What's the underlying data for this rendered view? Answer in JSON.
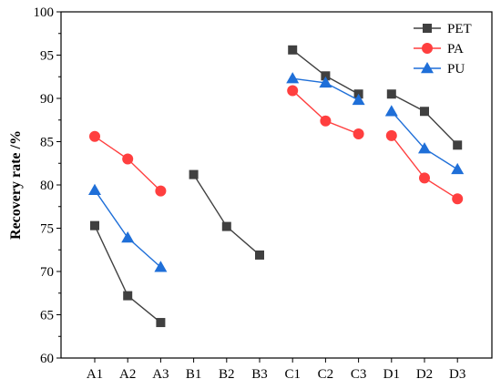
{
  "chart_data": {
    "type": "line",
    "title": "",
    "xlabel": "",
    "ylabel": "Recovery rate /%",
    "ylim": [
      60,
      100
    ],
    "yticks": [
      60,
      65,
      70,
      75,
      80,
      85,
      90,
      95,
      100
    ],
    "categories": [
      "A1",
      "A2",
      "A3",
      "B1",
      "B2",
      "B3",
      "C1",
      "C2",
      "C3",
      "D1",
      "D2",
      "D3"
    ],
    "groups": [
      [
        0,
        1,
        2
      ],
      [
        3,
        4,
        5
      ],
      [
        6,
        7,
        8
      ],
      [
        9,
        10,
        11
      ]
    ],
    "grid": false,
    "legend_position": "top-right",
    "series": [
      {
        "name": "PET",
        "color": "#404040",
        "marker": "square",
        "values": [
          75.3,
          67.2,
          64.1,
          81.2,
          75.2,
          71.9,
          95.6,
          92.6,
          90.5,
          90.5,
          88.5,
          84.6
        ]
      },
      {
        "name": "PA",
        "color": "#ff3f3f",
        "marker": "circle",
        "values": [
          85.6,
          83.0,
          79.3,
          null,
          null,
          null,
          90.9,
          87.4,
          85.9,
          85.7,
          80.8,
          78.4
        ]
      },
      {
        "name": "PU",
        "color": "#1f6fd8",
        "marker": "triangle",
        "values": [
          79.4,
          73.9,
          70.5,
          null,
          null,
          null,
          92.3,
          91.8,
          89.8,
          88.5,
          84.2,
          81.8
        ]
      }
    ]
  }
}
